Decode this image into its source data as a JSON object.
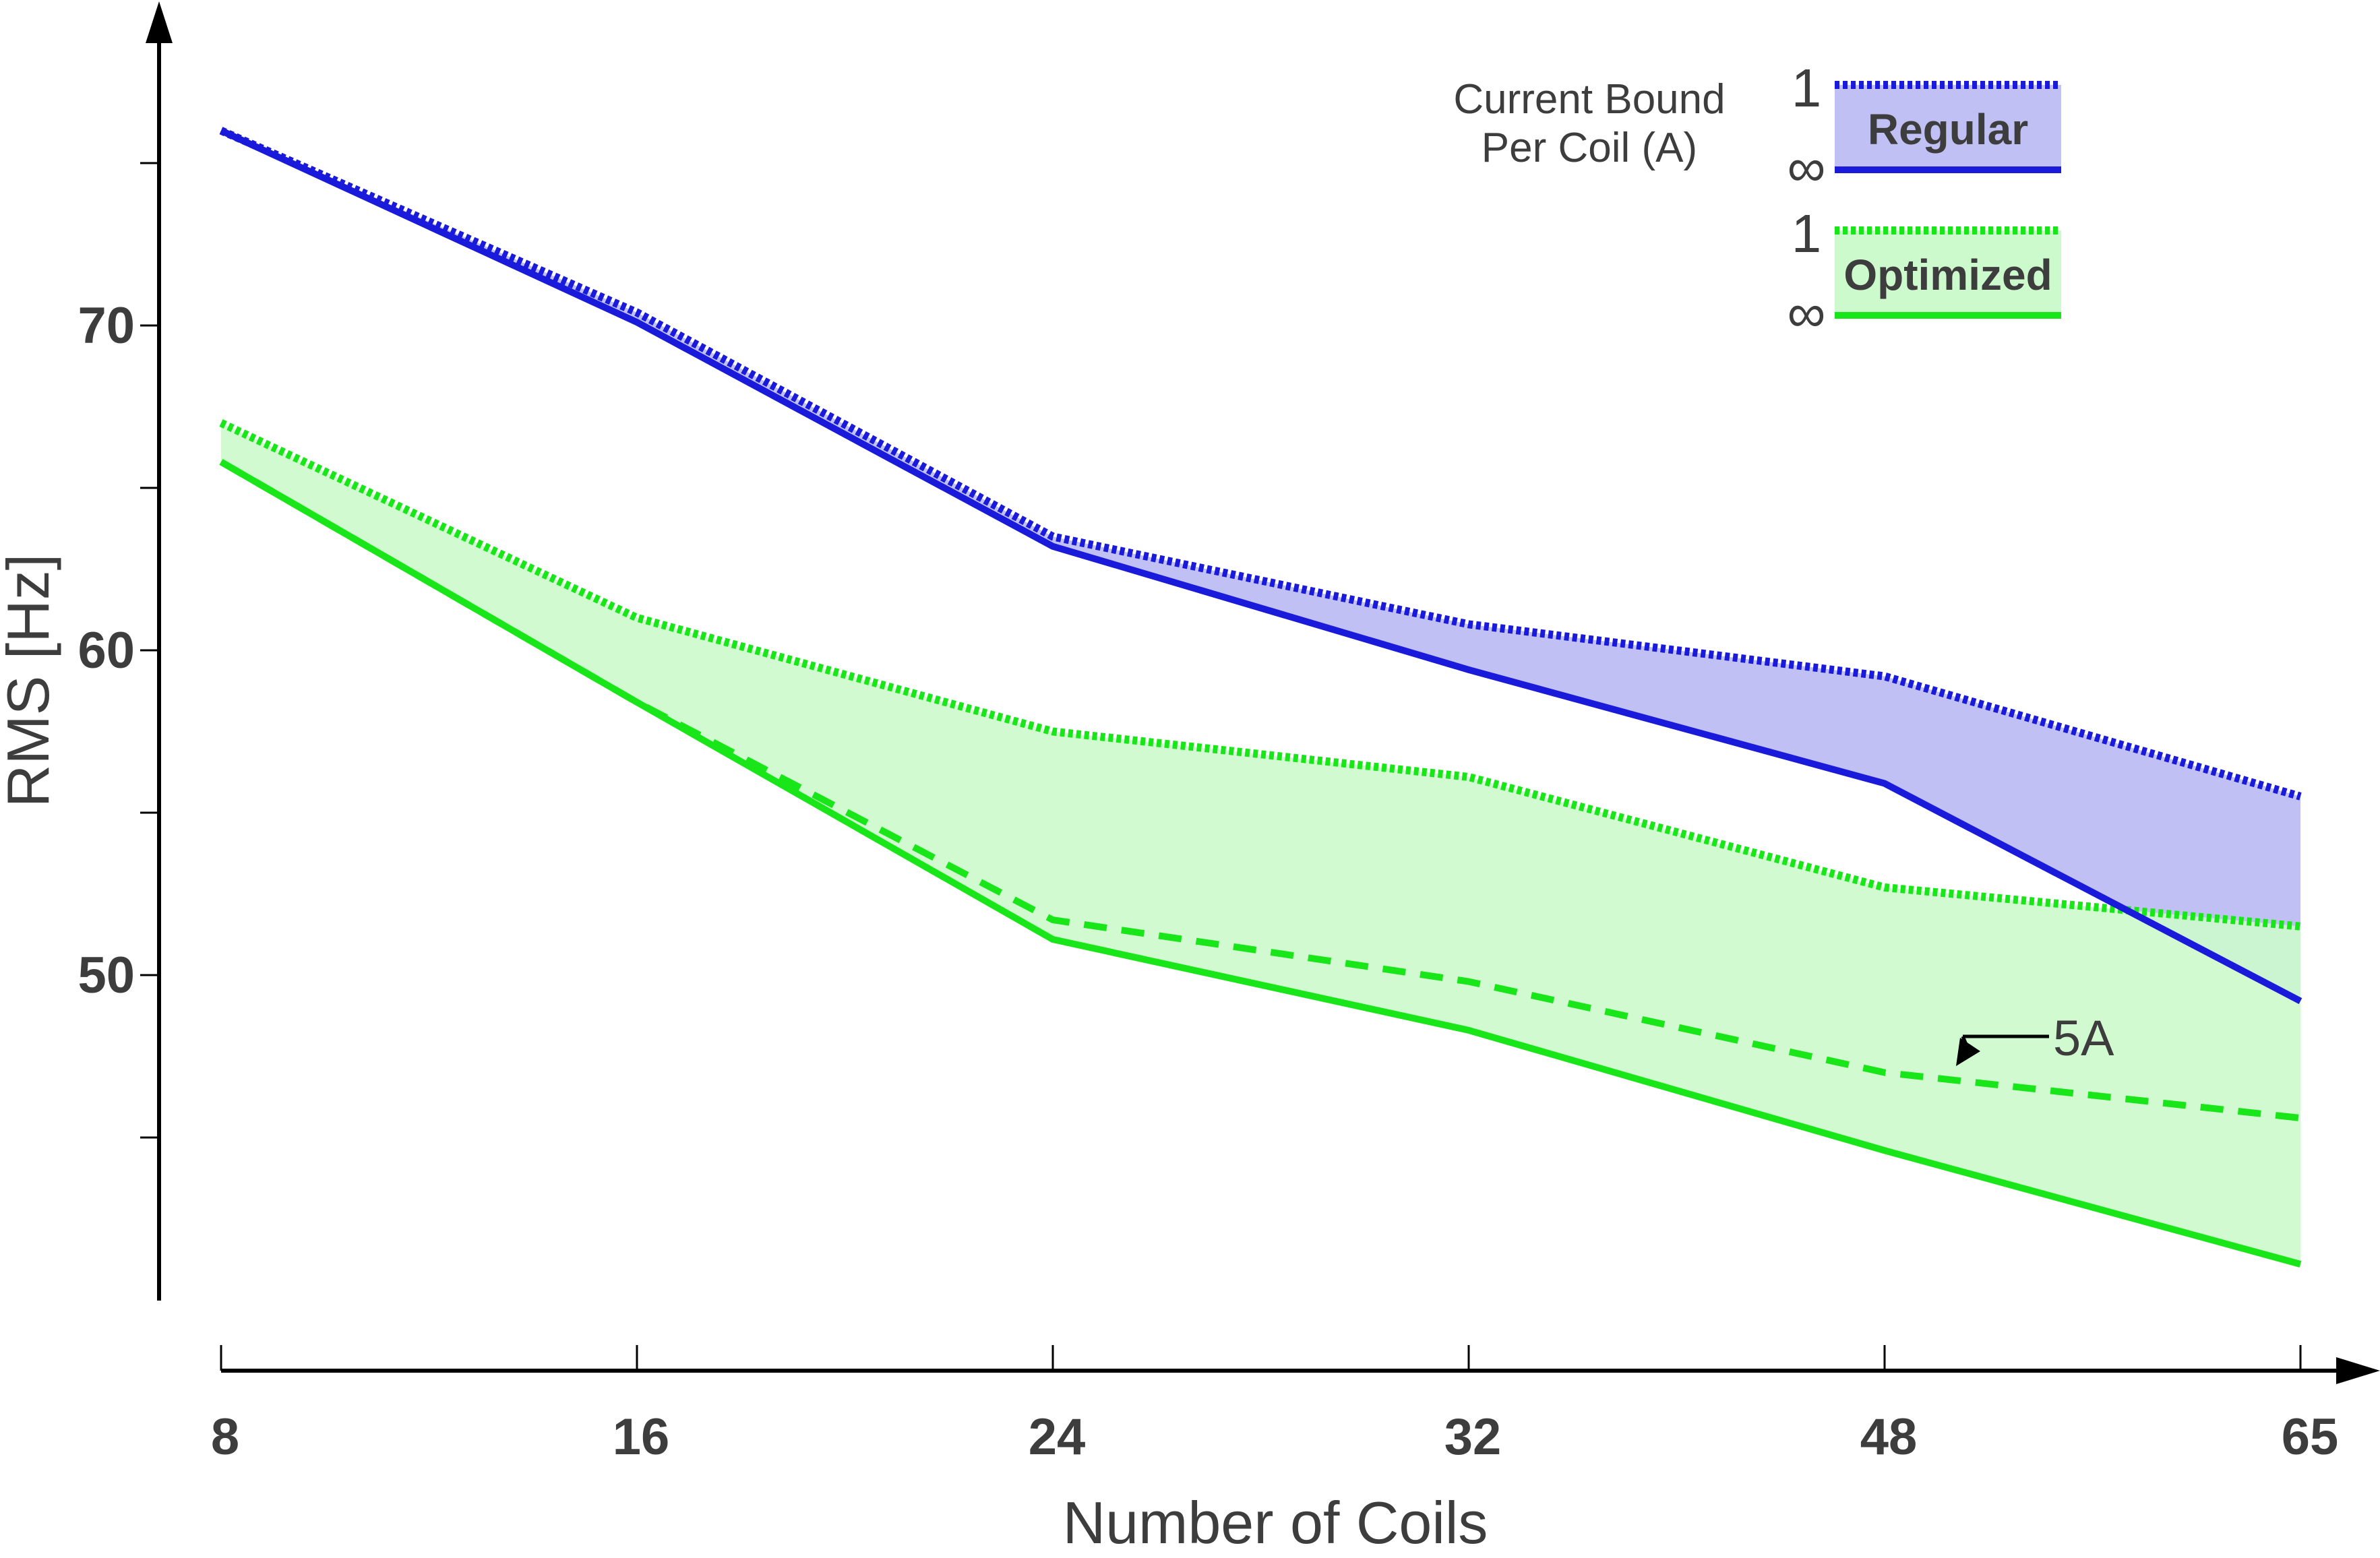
{
  "chart_data": {
    "type": "line",
    "title": "",
    "xlabel": "Number of Coils",
    "ylabel": "RMS [Hz]",
    "categories": [
      "8",
      "16",
      "24",
      "32",
      "48",
      "65"
    ],
    "ylim": [
      41,
      80
    ],
    "y_ticks": [
      45,
      50,
      55,
      60,
      65,
      70,
      75
    ],
    "y_tick_labels": [
      "50",
      "60",
      "70"
    ],
    "y_tick_label_values": [
      50,
      60,
      70
    ],
    "grid": false,
    "series": [
      {
        "name": "Regular, bound 1 A",
        "group": "Regular",
        "style": "dotted",
        "color": "#1a1adb",
        "values": [
          76.0,
          70.4,
          63.5,
          60.8,
          59.2,
          55.5
        ]
      },
      {
        "name": "Regular, bound ∞",
        "group": "Regular",
        "style": "solid",
        "color": "#1a1adb",
        "values": [
          76.0,
          70.1,
          63.2,
          59.4,
          55.9,
          49.2
        ]
      },
      {
        "name": "Optimized, bound 1 A",
        "group": "Optimized",
        "style": "dotted",
        "color": "#19e619",
        "values": [
          67.0,
          61.0,
          57.5,
          56.1,
          52.7,
          51.5
        ]
      },
      {
        "name": "Optimized, bound 5 A",
        "group": "Optimized",
        "style": "dashed",
        "color": "#19e619",
        "values": [
          65.8,
          58.4,
          51.7,
          49.8,
          47.0,
          45.6
        ]
      },
      {
        "name": "Optimized, bound ∞",
        "group": "Optimized",
        "style": "solid",
        "color": "#19e619",
        "values": [
          65.8,
          58.4,
          51.1,
          48.3,
          44.6,
          41.1
        ]
      }
    ],
    "bands": [
      {
        "name": "Regular",
        "fill": "#c0c0f5",
        "upper_series": 0,
        "lower_series": 1
      },
      {
        "name": "Optimized",
        "fill": "#ccfacc",
        "upper_series": 2,
        "lower_series": 4
      }
    ],
    "legend": {
      "title_line1": "Current Bound",
      "title_line2": "Per Coil (A)",
      "position": "top-right",
      "entries": [
        {
          "label": "Regular",
          "top_label": "1",
          "bottom_label": "∞",
          "color": "#1a1adb",
          "fill": "#c0c0f5"
        },
        {
          "label": "Optimized",
          "top_label": "1",
          "bottom_label": "∞",
          "color": "#19e619",
          "fill": "#ccfacc"
        }
      ]
    },
    "annotations": [
      {
        "text": "5A",
        "series": 3,
        "at_category": "48"
      }
    ]
  }
}
